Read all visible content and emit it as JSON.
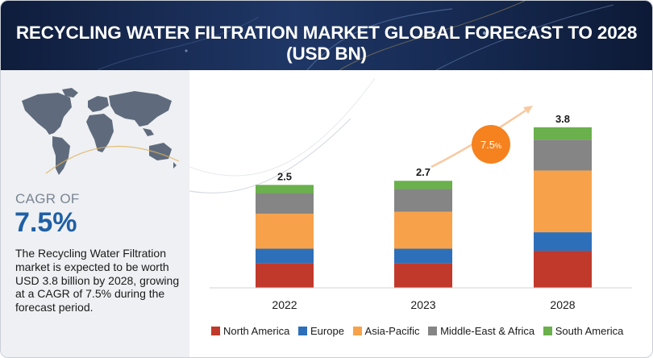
{
  "header": {
    "title": "RECYCLING WATER FILTRATION MARKET GLOBAL FORECAST TO 2028 (USD BN)"
  },
  "left_panel": {
    "cagr_label": "CAGR OF",
    "cagr_value": "7.5%",
    "description": "The Recycling Water Filtration market is expected to be worth USD  3.8 billion by 2028, growing at a CAGR of 7.5% during the forecast period."
  },
  "callout": {
    "value": "7.5",
    "unit": "%"
  },
  "colors": {
    "north_america": "#c0392b",
    "europe": "#2e6fba",
    "asia_pacific": "#f7a24a",
    "middle_east_africa": "#858585",
    "south_america": "#6ab04c",
    "callout": "#f5821f",
    "header_bg": "#1a2f5a",
    "accent_blue": "#1f5fa5"
  },
  "chart_data": {
    "type": "bar",
    "stacked": true,
    "categories": [
      "2022",
      "2023",
      "2028"
    ],
    "totals": [
      "2.5",
      "2.7",
      "3.8"
    ],
    "series": [
      {
        "name": "North America",
        "color": "#c0392b",
        "values": [
          0.6,
          0.6,
          0.9
        ]
      },
      {
        "name": "Europe",
        "color": "#2e6fba",
        "values": [
          0.35,
          0.35,
          0.45
        ]
      },
      {
        "name": "Asia-Pacific",
        "color": "#f7a24a",
        "values": [
          0.85,
          0.9,
          1.5
        ]
      },
      {
        "name": "Middle-East & Africa",
        "color": "#858585",
        "values": [
          0.5,
          0.55,
          0.75
        ]
      },
      {
        "name": "South America",
        "color": "#6ab04c",
        "values": [
          0.2,
          0.2,
          0.3
        ]
      }
    ],
    "ylim": [
      0,
      4.7
    ],
    "grid": false,
    "legend_position": "bottom"
  }
}
